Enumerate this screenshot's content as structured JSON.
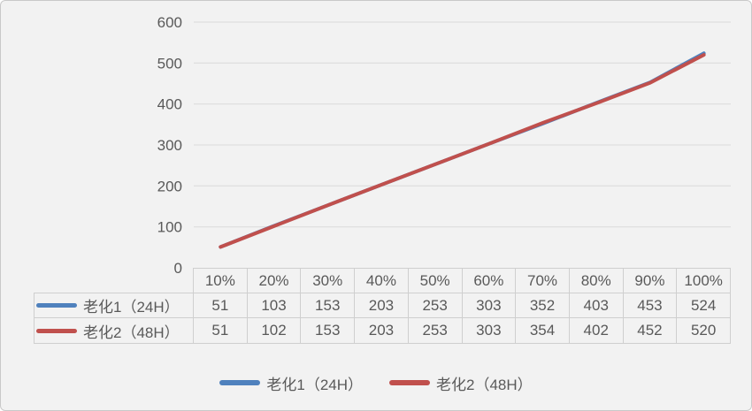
{
  "chart_data": {
    "type": "line",
    "title": "",
    "categories": [
      "10%",
      "20%",
      "30%",
      "40%",
      "50%",
      "60%",
      "70%",
      "80%",
      "90%",
      "100%"
    ],
    "series": [
      {
        "name": "老化1（24H）",
        "color": "#4F81BD",
        "values": [
          51,
          103,
          153,
          203,
          253,
          303,
          352,
          403,
          453,
          524
        ]
      },
      {
        "name": "老化2（48H）",
        "color": "#C0504D",
        "values": [
          51,
          102,
          153,
          203,
          253,
          303,
          354,
          402,
          452,
          520
        ]
      }
    ],
    "y_axis": {
      "min": 0,
      "max": 600,
      "step": 100,
      "tick_labels": [
        "0",
        "100",
        "200",
        "300",
        "400",
        "500",
        "600"
      ]
    },
    "xlabel": "",
    "ylabel": "",
    "grid": true,
    "legend_position": "bottom",
    "data_table_shown": true
  },
  "colors": {
    "panel_background": "#f2f2f2",
    "panel_border": "#c9c9c9",
    "gridline": "#dadada",
    "table_border": "#cfcfcf",
    "text": "#595959",
    "series1": "#4F81BD",
    "series2": "#C0504D"
  }
}
